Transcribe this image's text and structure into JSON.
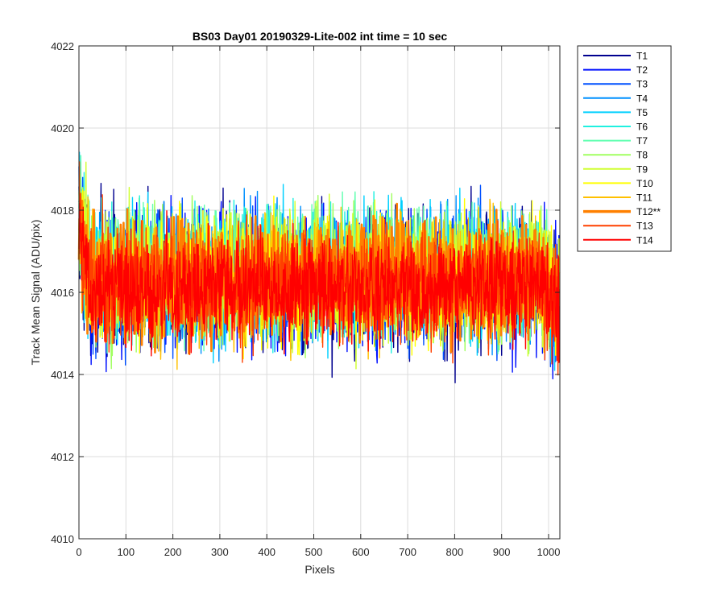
{
  "chart_data": {
    "type": "line",
    "title": "BS03 Day01 20190329-Lite-002 int time = 10 sec",
    "xlabel": "Pixels",
    "ylabel": "Track Mean Signal (ADU/pix)",
    "xlim": [
      0,
      1024
    ],
    "ylim": [
      4010,
      4022
    ],
    "xticks": [
      0,
      100,
      200,
      300,
      400,
      500,
      600,
      700,
      800,
      900,
      1000
    ],
    "yticks": [
      4010,
      4012,
      4014,
      4016,
      4018,
      4020,
      4022
    ],
    "grid": true,
    "legend_position": "outside-top-right",
    "series_note": "Approximate noisy profiles, 1024 pixels each; mean about 4016, amplitude about +/-2.5 ADU",
    "series": [
      {
        "name": "T1",
        "color": "#00008f",
        "bold": false,
        "mean": 4016.2,
        "spread": 2.2
      },
      {
        "name": "T2",
        "color": "#0010ff",
        "bold": false,
        "mean": 4016.3,
        "spread": 2.1
      },
      {
        "name": "T3",
        "color": "#0050ff",
        "bold": false,
        "mean": 4016.3,
        "spread": 2.0
      },
      {
        "name": "T4",
        "color": "#0090ff",
        "bold": false,
        "mean": 4016.4,
        "spread": 2.0
      },
      {
        "name": "T5",
        "color": "#00d0ff",
        "bold": false,
        "mean": 4016.4,
        "spread": 2.0
      },
      {
        "name": "T6",
        "color": "#20f0e0",
        "bold": false,
        "mean": 4016.5,
        "spread": 2.0
      },
      {
        "name": "T7",
        "color": "#60ffb0",
        "bold": false,
        "mean": 4016.5,
        "spread": 2.0
      },
      {
        "name": "T8",
        "color": "#a0ff60",
        "bold": false,
        "mean": 4016.4,
        "spread": 2.0
      },
      {
        "name": "T9",
        "color": "#d0ff30",
        "bold": false,
        "mean": 4016.4,
        "spread": 1.9
      },
      {
        "name": "T10",
        "color": "#ffff00",
        "bold": false,
        "mean": 4016.3,
        "spread": 1.9
      },
      {
        "name": "T11",
        "color": "#ffc000",
        "bold": false,
        "mean": 4016.3,
        "spread": 1.9
      },
      {
        "name": "T12**",
        "color": "#ff8000",
        "bold": true,
        "mean": 4016.3,
        "spread": 1.8
      },
      {
        "name": "T13",
        "color": "#ff4000",
        "bold": false,
        "mean": 4016.2,
        "spread": 1.8
      },
      {
        "name": "T14",
        "color": "#ff0000",
        "bold": false,
        "mean": 4016.1,
        "spread": 1.7
      }
    ]
  }
}
